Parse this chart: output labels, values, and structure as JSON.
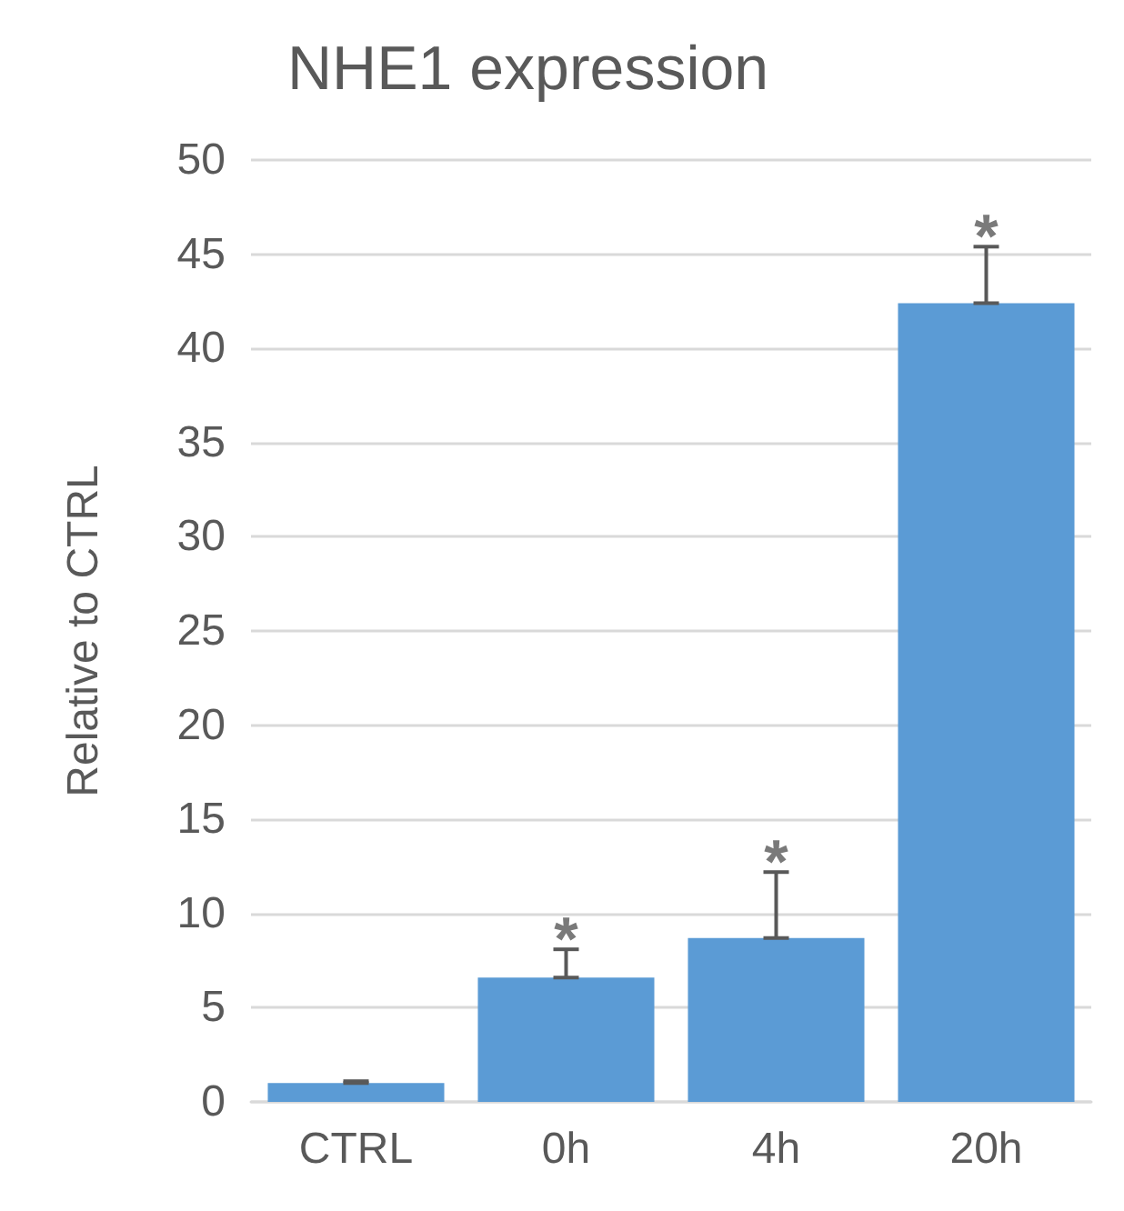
{
  "chart_data": {
    "type": "bar",
    "title": "NHE1 expression",
    "ylabel": "Relative to CTRL",
    "categories": [
      "CTRL",
      "0h",
      "4h",
      "20h"
    ],
    "values": [
      1.0,
      6.6,
      8.7,
      42.4
    ],
    "errors": [
      [
        1.0,
        1.1
      ],
      [
        6.6,
        8.1
      ],
      [
        8.7,
        12.2
      ],
      [
        42.4,
        45.4
      ]
    ],
    "color": "#5b9bd5",
    "ylim": [
      0,
      50
    ],
    "yticks": [
      0,
      5,
      10,
      15,
      20,
      25,
      30,
      35,
      40,
      45,
      50
    ],
    "grid": "y",
    "annotations": [
      "*",
      "*",
      "*"
    ]
  }
}
